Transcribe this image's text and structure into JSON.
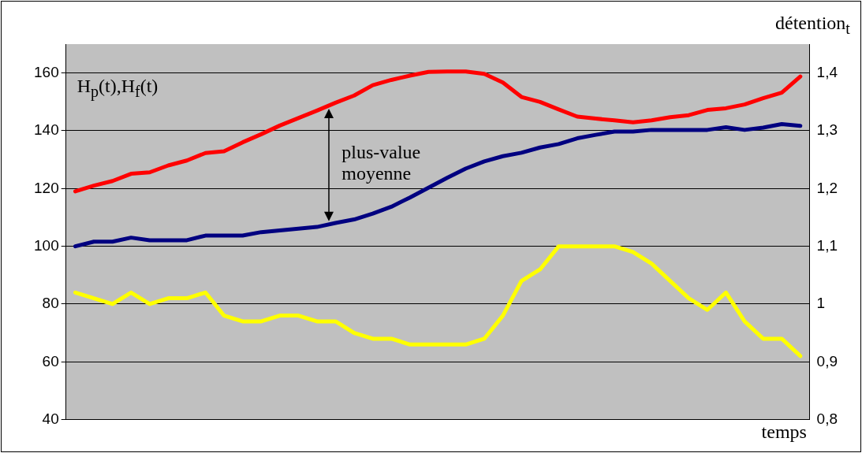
{
  "chart_data": {
    "type": "line",
    "ylabel": "H$_{p}$(t),H$_{f}$(t)",
    "y2label": "détention$_{t}$",
    "xlabel": "temps",
    "annotations": [
      "plus-value moyenne"
    ],
    "categories": [
      null,
      null,
      null,
      null,
      null,
      null,
      null,
      null,
      null,
      null,
      null,
      null,
      null,
      null,
      null,
      null,
      null,
      null,
      null,
      null,
      null,
      null,
      null,
      null,
      null,
      null,
      null,
      null,
      null,
      null,
      null,
      null,
      null,
      null,
      null,
      null,
      null,
      null,
      null,
      null
    ],
    "series": [
      {
        "color": "#ff0000",
        "values": [
          119,
          121,
          122.6,
          125.1,
          125.6,
          128,
          129.7,
          132.3,
          132.9,
          136,
          138.8,
          141.8,
          144.4,
          147,
          149.7,
          152.2,
          155.8,
          157.6,
          159.1,
          160.4,
          160.5,
          160.5,
          159.7,
          156.7,
          151.7,
          150,
          147.4,
          144.9,
          144.2,
          143.6,
          142.9,
          143.6,
          144.7,
          145.4,
          147.2,
          147.8,
          149.1,
          151.3,
          153.2,
          158.8
        ]
      },
      {
        "color": "#000080",
        "values": [
          100,
          101.6,
          101.6,
          103,
          102.1,
          102.1,
          102.1,
          103.7,
          103.7,
          103.7,
          104.9,
          105.5,
          106.1,
          106.7,
          108.1,
          109.3,
          111.3,
          113.7,
          116.9,
          120.3,
          123.7,
          126.9,
          129.4,
          131.2,
          132.4,
          134.2,
          135.4,
          137.4,
          138.6,
          139.7,
          139.7,
          140.3,
          140.3,
          140.3,
          140.3,
          141.2,
          140.3,
          141.1,
          142.3,
          141.7
        ]
      },
      {
        "color": "#ffff00",
        "axis": "y2",
        "values": [
          1.02,
          1.01,
          1.0,
          1.02,
          1.0,
          1.01,
          1.01,
          1.02,
          0.98,
          0.97,
          0.97,
          0.98,
          0.98,
          0.97,
          0.97,
          0.95,
          0.94,
          0.94,
          0.93,
          0.93,
          0.93,
          0.93,
          0.94,
          0.98,
          1.04,
          1.06,
          1.1,
          1.1,
          1.1,
          1.1,
          1.09,
          1.07,
          1.04,
          1.01,
          0.99,
          1.02,
          0.97,
          0.94,
          0.94,
          0.91
        ]
      }
    ],
    "ylim": [
      40,
      170
    ],
    "yticks": [
      40,
      60,
      80,
      100,
      120,
      140,
      160
    ],
    "y2lim": [
      0.8,
      1.45
    ],
    "y2ticks": [
      {
        "value": 0.8,
        "label": "0,8"
      },
      {
        "value": 0.9,
        "label": "0,9"
      },
      {
        "value": 1,
        "label": "1"
      },
      {
        "value": 1.1,
        "label": "1,1"
      },
      {
        "value": 1.2,
        "label": "1,2"
      },
      {
        "value": 1.3,
        "label": "1,3"
      },
      {
        "value": 1.4,
        "label": "1,4"
      }
    ],
    "grid": "y",
    "legend": false,
    "marker": "none",
    "line_style": "solid"
  }
}
